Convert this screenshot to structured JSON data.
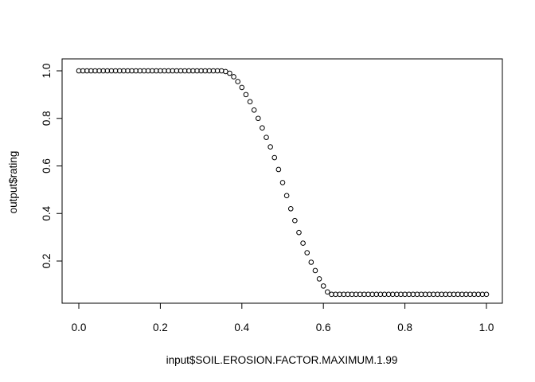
{
  "chart_data": {
    "type": "scatter",
    "title": "",
    "xlabel": "input$SOIL.EROSION.FACTOR.MAXIMUM.1.99",
    "ylabel": "output$rating",
    "xlim": [
      0.0,
      1.0
    ],
    "ylim": [
      0.06,
      1.0
    ],
    "xticks": [
      "0.0",
      "0.2",
      "0.4",
      "0.6",
      "0.8",
      "1.0"
    ],
    "yticks": [
      "0.2",
      "0.4",
      "0.6",
      "0.8",
      "1.0"
    ],
    "grid": false,
    "legend": "none",
    "marker": "open-circle",
    "x": [
      0.0,
      0.01,
      0.02,
      0.03,
      0.04,
      0.05,
      0.06,
      0.07,
      0.08,
      0.09,
      0.1,
      0.11,
      0.12,
      0.13,
      0.14,
      0.15,
      0.16,
      0.17,
      0.18,
      0.19,
      0.2,
      0.21,
      0.22,
      0.23,
      0.24,
      0.25,
      0.26,
      0.27,
      0.28,
      0.29,
      0.3,
      0.31,
      0.32,
      0.33,
      0.34,
      0.35,
      0.36,
      0.37,
      0.38,
      0.39,
      0.4,
      0.41,
      0.42,
      0.43,
      0.44,
      0.45,
      0.46,
      0.47,
      0.48,
      0.49,
      0.5,
      0.51,
      0.52,
      0.53,
      0.54,
      0.55,
      0.56,
      0.57,
      0.58,
      0.59,
      0.6,
      0.61,
      0.62,
      0.63,
      0.64,
      0.65,
      0.66,
      0.67,
      0.68,
      0.69,
      0.7,
      0.71,
      0.72,
      0.73,
      0.74,
      0.75,
      0.76,
      0.77,
      0.78,
      0.79,
      0.8,
      0.81,
      0.82,
      0.83,
      0.84,
      0.85,
      0.86,
      0.87,
      0.88,
      0.89,
      0.9,
      0.91,
      0.92,
      0.93,
      0.94,
      0.95,
      0.96,
      0.97,
      0.98,
      0.99,
      1.0
    ],
    "y": [
      1.0,
      1.0,
      1.0,
      1.0,
      1.0,
      1.0,
      1.0,
      1.0,
      1.0,
      1.0,
      1.0,
      1.0,
      1.0,
      1.0,
      1.0,
      1.0,
      1.0,
      1.0,
      1.0,
      1.0,
      1.0,
      1.0,
      1.0,
      1.0,
      1.0,
      1.0,
      1.0,
      1.0,
      1.0,
      1.0,
      1.0,
      1.0,
      1.0,
      1.0,
      1.0,
      1.0,
      0.997,
      0.99,
      0.975,
      0.955,
      0.93,
      0.9,
      0.87,
      0.835,
      0.8,
      0.76,
      0.72,
      0.68,
      0.635,
      0.585,
      0.53,
      0.475,
      0.42,
      0.37,
      0.32,
      0.275,
      0.235,
      0.195,
      0.16,
      0.125,
      0.095,
      0.07,
      0.06,
      0.06,
      0.06,
      0.06,
      0.06,
      0.06,
      0.06,
      0.06,
      0.06,
      0.06,
      0.06,
      0.06,
      0.06,
      0.06,
      0.06,
      0.06,
      0.06,
      0.06,
      0.06,
      0.06,
      0.06,
      0.06,
      0.06,
      0.06,
      0.06,
      0.06,
      0.06,
      0.06,
      0.06,
      0.06,
      0.06,
      0.06,
      0.06,
      0.06,
      0.06,
      0.06,
      0.06,
      0.06,
      0.06
    ]
  }
}
